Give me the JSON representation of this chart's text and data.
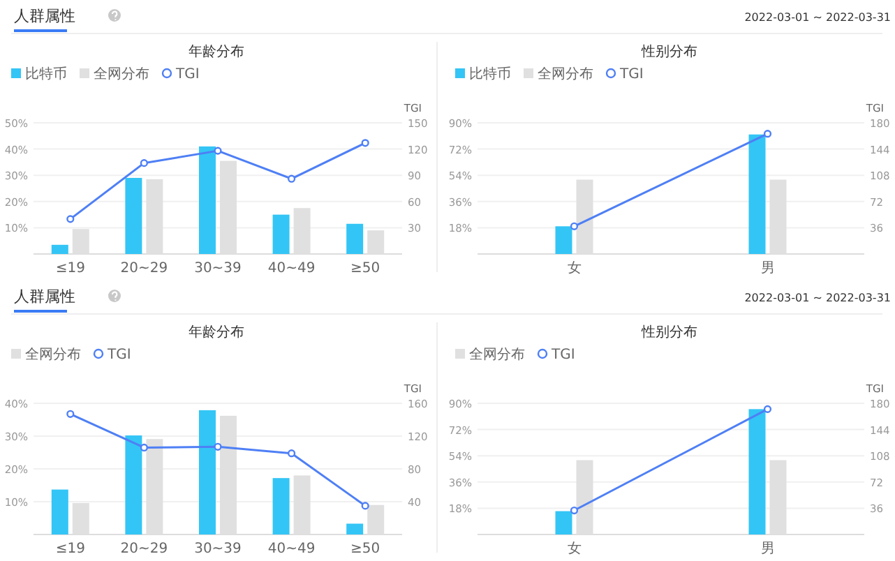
{
  "chart_data": [
    {
      "type": "bar",
      "title": "年龄分布",
      "annotations": [
        "人群属性"
      ],
      "categories": [
        "≤19",
        "20~29",
        "30~39",
        "40~49",
        "≥50"
      ],
      "series": [
        {
          "name": "比特币",
          "color": "#33c5f5",
          "values": [
            3.5,
            29,
            41,
            15,
            11.5
          ]
        },
        {
          "name": "全网分布",
          "color": "#e0e0e0",
          "values": [
            9.5,
            28.5,
            35.5,
            17.5,
            9
          ]
        },
        {
          "name": "TGI",
          "type": "line",
          "axis": "y2",
          "marker": "circle",
          "color": "#4e7ff5",
          "values": [
            40,
            104,
            118,
            86,
            127
          ]
        }
      ],
      "ylim": [
        0,
        50
      ],
      "yticks": [
        {
          "value": 10,
          "label": "10%"
        },
        {
          "value": 20,
          "label": "20%"
        },
        {
          "value": 30,
          "label": "30%"
        },
        {
          "value": 40,
          "label": "40%"
        },
        {
          "value": 50,
          "label": "50%"
        }
      ],
      "y2lim": [
        0,
        150
      ],
      "y2ticks": [
        30,
        60,
        90,
        120,
        150
      ],
      "y2label": "TGI",
      "grid": "y",
      "legend": "top left"
    },
    {
      "type": "bar",
      "title": "性别分布",
      "annotations": [
        "2022-03-01 ~ 2022-03-31"
      ],
      "categories": [
        "女",
        "男"
      ],
      "series": [
        {
          "name": "比特币",
          "color": "#33c5f5",
          "values": [
            19,
            82
          ]
        },
        {
          "name": "全网分布",
          "color": "#e0e0e0",
          "values": [
            51,
            51
          ]
        },
        {
          "name": "TGI",
          "type": "line",
          "axis": "y2",
          "marker": "circle",
          "color": "#4e7ff5",
          "values": [
            38,
            165
          ]
        }
      ],
      "ylim": [
        0,
        90
      ],
      "yticks": [
        {
          "value": 18,
          "label": "18%"
        },
        {
          "value": 36,
          "label": "36%"
        },
        {
          "value": 54,
          "label": "54%"
        },
        {
          "value": 72,
          "label": "72%"
        },
        {
          "value": 90,
          "label": "90%"
        }
      ],
      "y2lim": [
        0,
        180
      ],
      "y2ticks": [
        36,
        72,
        108,
        144,
        180
      ],
      "y2label": "TGI",
      "grid": "y",
      "legend": "top left"
    },
    {
      "type": "bar",
      "title": "年龄分布",
      "annotations": [
        "人群属性"
      ],
      "categories": [
        "≤19",
        "20~29",
        "30~39",
        "40~49",
        "≥50"
      ],
      "series": [
        {
          "color": "#33c5f5",
          "values": [
            13.7,
            30.2,
            37.9,
            17.2,
            3.3
          ]
        },
        {
          "name": "全网分布",
          "color": "#e0e0e0",
          "values": [
            9.6,
            29.1,
            36.2,
            18,
            9
          ]
        },
        {
          "name": "TGI",
          "type": "line",
          "axis": "y2",
          "marker": "circle",
          "color": "#4e7ff5",
          "values": [
            147,
            106,
            107,
            99,
            35
          ]
        }
      ],
      "ylim": [
        0,
        40
      ],
      "yticks": [
        {
          "value": 10,
          "label": "10%"
        },
        {
          "value": 20,
          "label": "20%"
        },
        {
          "value": 30,
          "label": "30%"
        },
        {
          "value": 40,
          "label": "40%"
        }
      ],
      "y2lim": [
        0,
        160
      ],
      "y2ticks": [
        40,
        80,
        120,
        160
      ],
      "y2label": "TGI",
      "grid": "y",
      "legend": "top left"
    },
    {
      "type": "bar",
      "title": "性别分布",
      "annotations": [
        "2022-03-01 ~ 2022-03-31"
      ],
      "categories": [
        "女",
        "男"
      ],
      "series": [
        {
          "color": "#33c5f5",
          "values": [
            16,
            86
          ]
        },
        {
          "name": "全网分布",
          "color": "#e0e0e0",
          "values": [
            51,
            51
          ]
        },
        {
          "name": "TGI",
          "type": "line",
          "axis": "y2",
          "marker": "circle",
          "color": "#4e7ff5",
          "values": [
            33,
            172
          ]
        }
      ],
      "ylim": [
        0,
        90
      ],
      "yticks": [
        {
          "value": 18,
          "label": "18%"
        },
        {
          "value": 36,
          "label": "36%"
        },
        {
          "value": 54,
          "label": "54%"
        },
        {
          "value": 72,
          "label": "72%"
        },
        {
          "value": 90,
          "label": "90%"
        }
      ],
      "y2lim": [
        0,
        180
      ],
      "y2ticks": [
        36,
        72,
        108,
        144,
        180
      ],
      "y2label": "TGI",
      "grid": "y",
      "legend": "top left"
    }
  ]
}
